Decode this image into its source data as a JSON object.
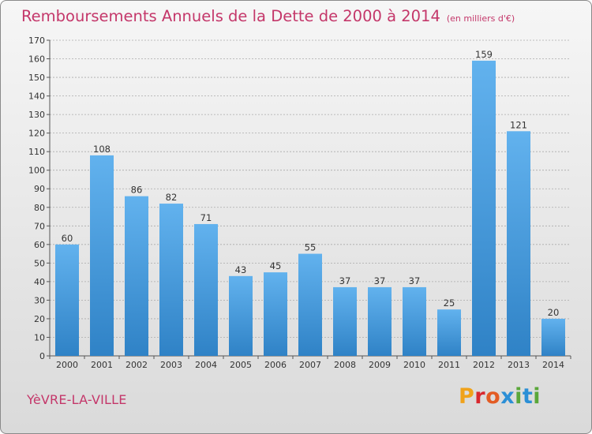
{
  "title": "Remboursements Annuels de la Dette de 2000 à 2014",
  "subtitle": "(en milliers d'€)",
  "commune": "YèVRE-LA-VILLE",
  "logo": {
    "letters": [
      "P",
      "r",
      "o",
      "x",
      "i",
      "t",
      "i"
    ]
  },
  "colors": {
    "title": "#c4376a",
    "bar_light": "#62b2ee",
    "bar_dark": "#2f82c6",
    "axis": "#555555",
    "gridline": "#aaaaaa"
  },
  "chart_data": {
    "type": "bar",
    "title": "Remboursements Annuels de la Dette de 2000 à 2014",
    "xlabel": "",
    "ylabel": "",
    "ylim": [
      0,
      170
    ],
    "yticks": [
      0,
      10,
      20,
      30,
      40,
      50,
      60,
      70,
      80,
      90,
      100,
      110,
      120,
      130,
      140,
      150,
      160,
      170
    ],
    "categories": [
      "2000",
      "2001",
      "2002",
      "2003",
      "2004",
      "2005",
      "2006",
      "2007",
      "2008",
      "2009",
      "2010",
      "2011",
      "2012",
      "2013",
      "2014"
    ],
    "values": [
      60,
      108,
      86,
      82,
      71,
      43,
      45,
      55,
      37,
      37,
      37,
      25,
      159,
      121,
      20
    ]
  }
}
